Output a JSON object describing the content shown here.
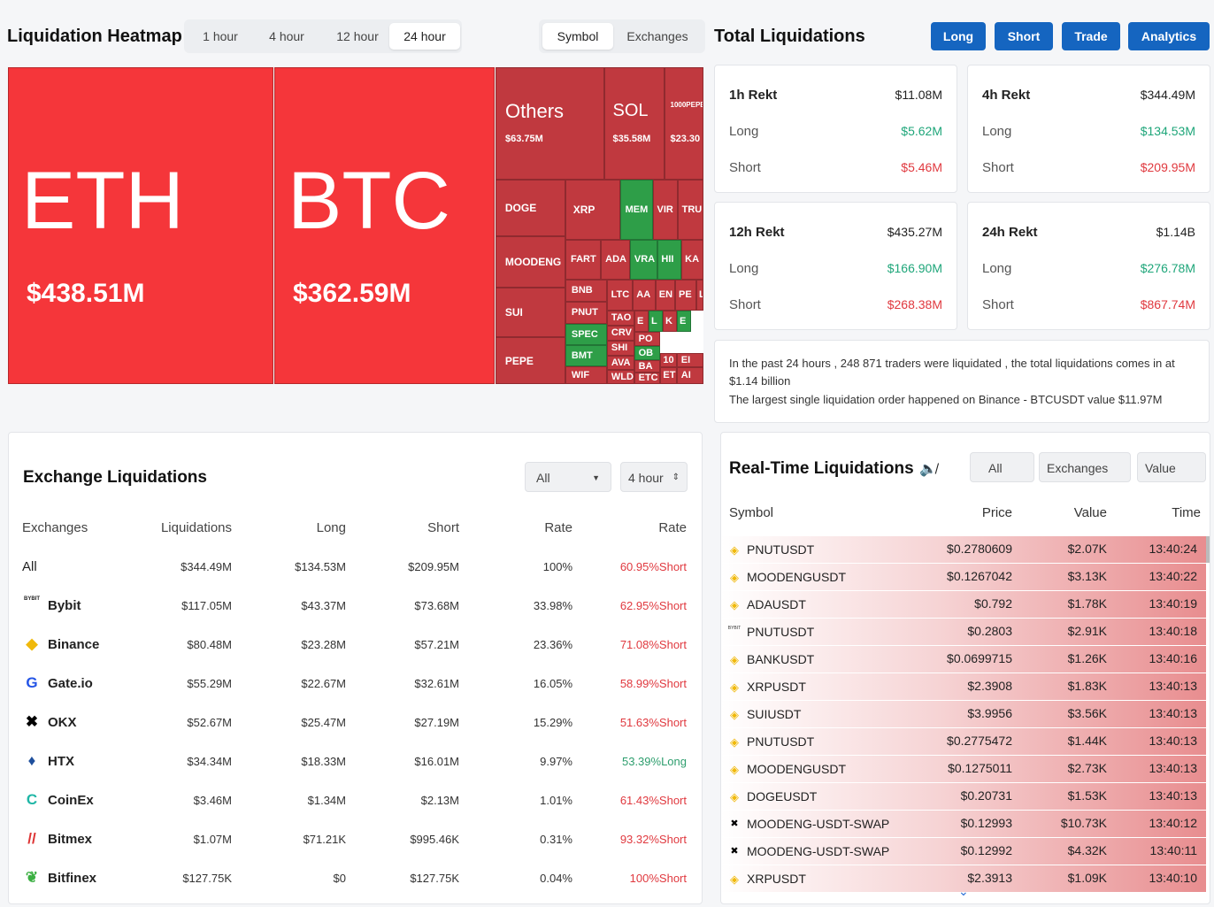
{
  "heatmap": {
    "title": "Liquidation Heatmap",
    "tabs": [
      "1 hour",
      "4 hour",
      "12 hour",
      "24 hour"
    ],
    "active_tab": 3,
    "toggles": [
      "Symbol",
      "Exchanges"
    ],
    "tiles": [
      {
        "label": "ETH",
        "value": "$438.51M",
        "color": "#f5363a"
      },
      {
        "label": "BTC",
        "value": "$362.59M",
        "color": "#f5363a"
      },
      {
        "label": "Others",
        "value": "$63.75M",
        "color": "#c0393f"
      },
      {
        "label": "SOL",
        "value": "$35.58M",
        "color": "#c0393f"
      },
      {
        "label": "1000PEPE",
        "value": "$23.30",
        "color": "#c0393f"
      },
      {
        "label": "DOGE",
        "color": "#c0393f"
      },
      {
        "label": "MOODENG",
        "color": "#c0393f"
      },
      {
        "label": "SUI",
        "color": "#c0393f"
      },
      {
        "label": "PEPE",
        "color": "#c0393f"
      },
      {
        "label": "XRP",
        "color": "#c0393f"
      },
      {
        "label": "MEM",
        "color": "#2e9e48"
      },
      {
        "label": "VIR",
        "color": "#c0393f"
      },
      {
        "label": "TRU",
        "color": "#c0393f"
      },
      {
        "label": "FART",
        "color": "#c0393f"
      },
      {
        "label": "ADA",
        "color": "#c0393f"
      },
      {
        "label": "VRA",
        "color": "#2e9e48"
      },
      {
        "label": "HII",
        "color": "#2e9e48"
      },
      {
        "label": "KA",
        "color": "#c0393f"
      },
      {
        "label": "BNB",
        "color": "#c0393f"
      },
      {
        "label": "PNUT",
        "color": "#c0393f"
      },
      {
        "label": "SPEC",
        "color": "#2e9e48"
      },
      {
        "label": "BMT",
        "color": "#2e9e48"
      },
      {
        "label": "WIF",
        "color": "#c0393f"
      },
      {
        "label": "LTC",
        "color": "#c0393f"
      },
      {
        "label": "AA",
        "color": "#c0393f"
      },
      {
        "label": "EN",
        "color": "#c0393f"
      },
      {
        "label": "PE",
        "color": "#c0393f"
      },
      {
        "label": "L",
        "color": "#c0393f"
      },
      {
        "label": "TAO",
        "color": "#c0393f"
      },
      {
        "label": "CRV",
        "color": "#c0393f"
      },
      {
        "label": "SHI",
        "color": "#c0393f"
      },
      {
        "label": "AVA",
        "color": "#c0393f"
      },
      {
        "label": "WLD",
        "color": "#c0393f"
      },
      {
        "label": "E",
        "color": "#c0393f"
      },
      {
        "label": "L",
        "color": "#2e9e48"
      },
      {
        "label": "K",
        "color": "#c0393f"
      },
      {
        "label": "E",
        "color": "#2e9e48"
      },
      {
        "label": "PO",
        "color": "#c0393f"
      },
      {
        "label": "OB",
        "color": "#2e9e48"
      },
      {
        "label": "BA",
        "color": "#c0393f"
      },
      {
        "label": "ETC",
        "color": "#c0393f"
      },
      {
        "label": "10",
        "color": "#c0393f"
      },
      {
        "label": "ET",
        "color": "#c0393f"
      },
      {
        "label": "EI",
        "color": "#c0393f"
      },
      {
        "label": "AI",
        "color": "#c0393f"
      }
    ]
  },
  "total": {
    "title": "Total Liquidations",
    "buttons": [
      "Long",
      "Short",
      "Trade",
      "Analytics"
    ],
    "cards": [
      {
        "title": "1h Rekt",
        "total": "$11.08M",
        "long_label": "Long",
        "long": "$5.62M",
        "short_label": "Short",
        "short": "$5.46M"
      },
      {
        "title": "4h Rekt",
        "total": "$344.49M",
        "long_label": "Long",
        "long": "$134.53M",
        "short_label": "Short",
        "short": "$209.95M"
      },
      {
        "title": "12h Rekt",
        "total": "$435.27M",
        "long_label": "Long",
        "long": "$166.90M",
        "short_label": "Short",
        "short": "$268.38M"
      },
      {
        "title": "24h Rekt",
        "total": "$1.14B",
        "long_label": "Long",
        "long": "$276.78M",
        "short_label": "Short",
        "short": "$867.74M"
      }
    ],
    "info": [
      "In the past 24 hours , 248 871 traders were liquidated , the total liquidations comes in at $1.14 billion",
      "The largest single liquidation order happened on Binance - BTCUSDT value $11.97M"
    ]
  },
  "exchange": {
    "title": "Exchange Liquidations",
    "filter": "All",
    "period": "4 hour",
    "columns": [
      "Exchanges",
      "Liquidations",
      "Long",
      "Short",
      "Rate",
      "Rate"
    ],
    "rows": [
      [
        "All",
        "$344.49M",
        "$134.53M",
        "$209.95M",
        "100%",
        "60.95%Short"
      ],
      [
        "Bybit",
        "$117.05M",
        "$43.37M",
        "$73.68M",
        "33.98%",
        "62.95%Short"
      ],
      [
        "Binance",
        "$80.48M",
        "$23.28M",
        "$57.21M",
        "23.36%",
        "71.08%Short"
      ],
      [
        "Gate.io",
        "$55.29M",
        "$22.67M",
        "$32.61M",
        "16.05%",
        "58.99%Short"
      ],
      [
        "OKX",
        "$52.67M",
        "$25.47M",
        "$27.19M",
        "15.29%",
        "51.63%Short"
      ],
      [
        "HTX",
        "$34.34M",
        "$18.33M",
        "$16.01M",
        "9.97%",
        "53.39%Long"
      ],
      [
        "CoinEx",
        "$3.46M",
        "$1.34M",
        "$2.13M",
        "1.01%",
        "61.43%Short"
      ],
      [
        "Bitmex",
        "$1.07M",
        "$71.21K",
        "$995.46K",
        "0.31%",
        "93.32%Short"
      ],
      [
        "Bitfinex",
        "$127.75K",
        "$0",
        "$127.75K",
        "0.04%",
        "100%Short"
      ]
    ],
    "rate_colors": [
      "#e0393f",
      "#e0393f",
      "#e0393f",
      "#e0393f",
      "#e0393f",
      "#2e9e6e",
      "#e0393f",
      "#e0393f",
      "#e0393f"
    ]
  },
  "realtime": {
    "title": "Real-Time Liquidations",
    "filters": [
      "All",
      "Exchanges",
      "Value"
    ],
    "columns": [
      "Symbol",
      "Price",
      "Value",
      "Time"
    ],
    "rows": [
      [
        "PNUTUSDT",
        "$0.2780609",
        "$2.07K",
        "13:40:24"
      ],
      [
        "MOODENGUSDT",
        "$0.1267042",
        "$3.13K",
        "13:40:22"
      ],
      [
        "ADAUSDT",
        "$0.792",
        "$1.78K",
        "13:40:19"
      ],
      [
        "PNUTUSDT",
        "$0.2803",
        "$2.91K",
        "13:40:18"
      ],
      [
        "BANKUSDT",
        "$0.0699715",
        "$1.26K",
        "13:40:16"
      ],
      [
        "XRPUSDT",
        "$2.3908",
        "$1.83K",
        "13:40:13"
      ],
      [
        "SUIUSDT",
        "$3.9956",
        "$3.56K",
        "13:40:13"
      ],
      [
        "PNUTUSDT",
        "$0.2775472",
        "$1.44K",
        "13:40:13"
      ],
      [
        "MOODENGUSDT",
        "$0.1275011",
        "$2.73K",
        "13:40:13"
      ],
      [
        "DOGEUSDT",
        "$0.20731",
        "$1.53K",
        "13:40:13"
      ],
      [
        "MOODENG-USDT-SWAP",
        "$0.12993",
        "$10.73K",
        "13:40:12"
      ],
      [
        "MOODENG-USDT-SWAP",
        "$0.12992",
        "$4.32K",
        "13:40:11"
      ],
      [
        "XRPUSDT",
        "$2.3913",
        "$1.09K",
        "13:40:10"
      ]
    ]
  }
}
